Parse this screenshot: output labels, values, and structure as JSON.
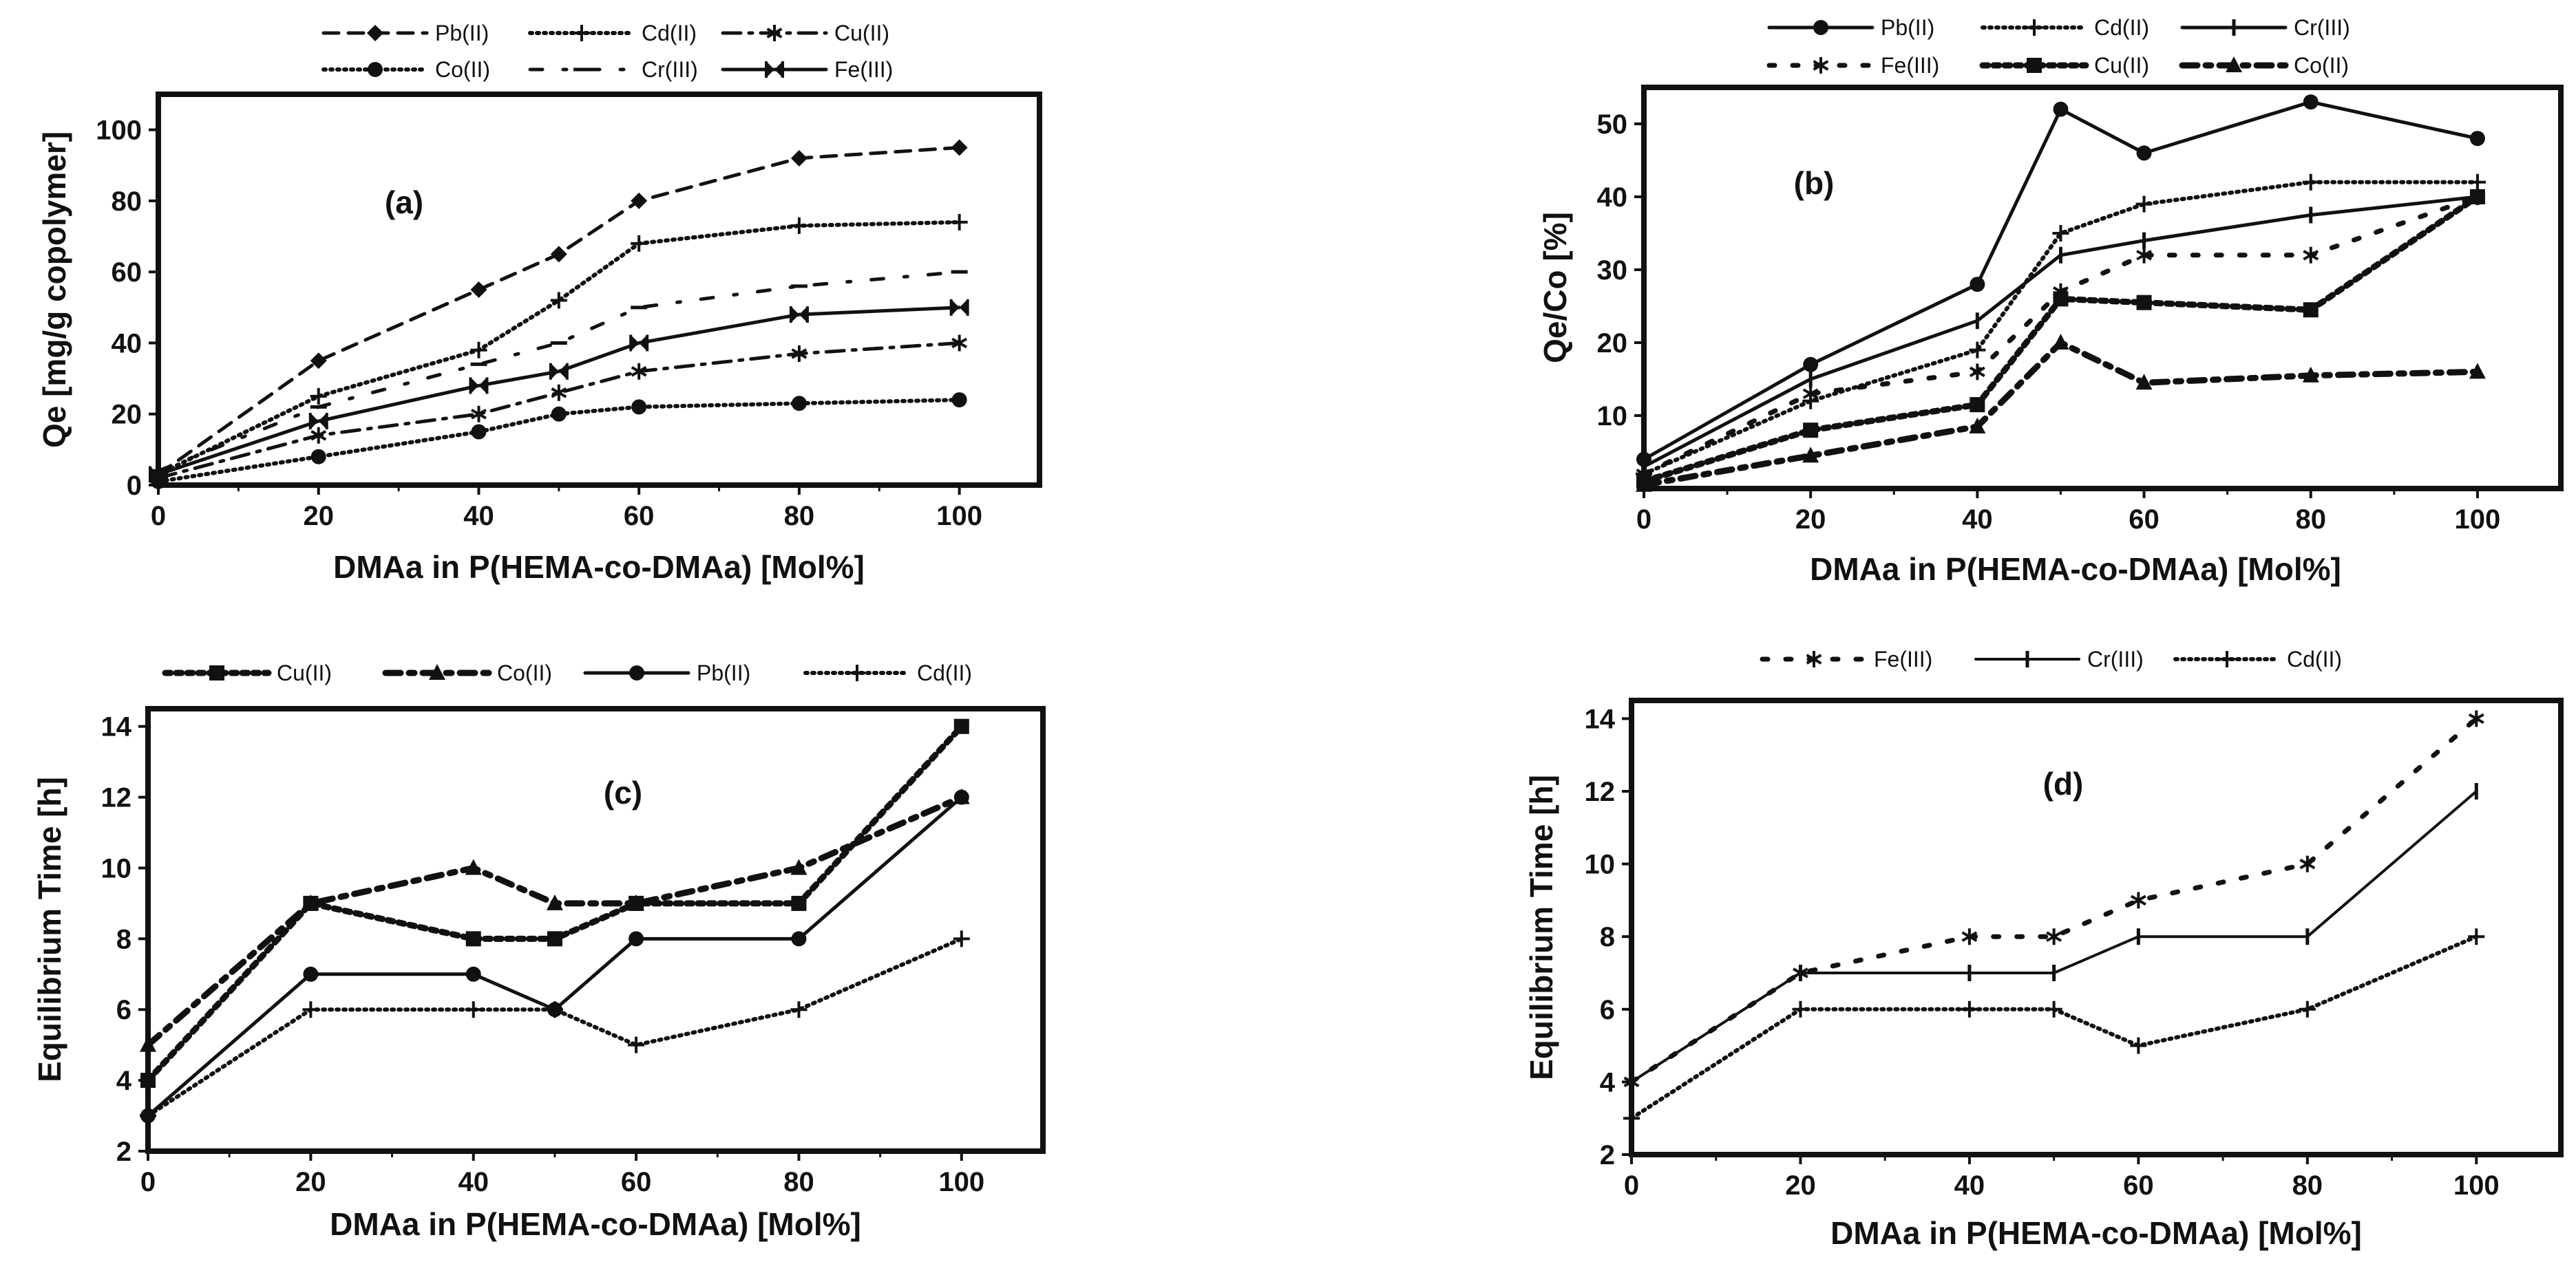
{
  "figure": {
    "background": "#ffffff",
    "ink": "#111111"
  },
  "chart_data": [
    {
      "panel_id": "a",
      "type": "line",
      "panel_label": "(a)",
      "xlabel": "DMAa in P(HEMA-co-DMAa) [Mol%]",
      "ylabel": "Qe [mg/g copolymer]",
      "xlim": [
        0,
        110
      ],
      "ylim": [
        0,
        110
      ],
      "xticks": [
        0,
        20,
        40,
        60,
        80,
        100
      ],
      "yticks": [
        0,
        20,
        40,
        60,
        80,
        100
      ],
      "legend_rows": [
        [
          0,
          1,
          2
        ],
        [
          3,
          4,
          5
        ]
      ],
      "series": [
        {
          "name": "Pb(II)",
          "dash": "dashed",
          "marker": "diamond",
          "x": [
            0,
            20,
            40,
            50,
            60,
            80,
            100
          ],
          "y": [
            3,
            35,
            55,
            65,
            80,
            92,
            95
          ]
        },
        {
          "name": "Cd(II)",
          "dash": "dotted",
          "marker": "plus",
          "x": [
            0,
            20,
            40,
            50,
            60,
            80,
            100
          ],
          "y": [
            3,
            25,
            38,
            52,
            68,
            73,
            74
          ]
        },
        {
          "name": "Cu(II)",
          "dash": "dashdot",
          "marker": "asterisk",
          "x": [
            0,
            20,
            40,
            50,
            60,
            80,
            100
          ],
          "y": [
            2,
            14,
            20,
            26,
            32,
            37,
            40
          ]
        },
        {
          "name": "Co(II)",
          "dash": "dotted",
          "marker": "circle",
          "x": [
            0,
            20,
            40,
            50,
            60,
            80,
            100
          ],
          "y": [
            1,
            8,
            15,
            20,
            22,
            23,
            24
          ]
        },
        {
          "name": "Cr(III)",
          "dash": "sparse-dashdot",
          "marker": "dash",
          "x": [
            0,
            20,
            40,
            50,
            60,
            80,
            100
          ],
          "y": [
            4,
            22,
            34,
            40,
            50,
            56,
            60
          ]
        },
        {
          "name": "Fe(III)",
          "dash": "solid",
          "marker": "bowtie",
          "x": [
            0,
            20,
            40,
            50,
            60,
            80,
            100
          ],
          "y": [
            3,
            18,
            28,
            32,
            40,
            48,
            50
          ]
        }
      ]
    },
    {
      "panel_id": "b",
      "type": "line",
      "panel_label": "(b)",
      "xlabel": "DMAa in P(HEMA-co-DMAa) [Mol%]",
      "ylabel": "Qe/Co [%]",
      "xlim": [
        0,
        110
      ],
      "ylim": [
        0,
        55
      ],
      "xticks": [
        0,
        20,
        40,
        60,
        80,
        100
      ],
      "yticks": [
        10,
        20,
        30,
        40,
        50
      ],
      "legend_rows": [
        [
          0,
          1,
          2
        ],
        [
          3,
          4,
          5
        ]
      ],
      "series": [
        {
          "name": "Pb(II)",
          "dash": "solid",
          "marker": "circle",
          "x": [
            0,
            20,
            40,
            50,
            60,
            80,
            100
          ],
          "y": [
            4,
            17,
            28,
            52,
            46,
            53,
            48
          ]
        },
        {
          "name": "Cd(II)",
          "dash": "dotted",
          "marker": "plus",
          "x": [
            0,
            20,
            40,
            50,
            60,
            80,
            100
          ],
          "y": [
            2,
            12,
            19,
            35,
            39,
            42,
            42
          ]
        },
        {
          "name": "Cr(III)",
          "dash": "solid",
          "marker": "vbar",
          "x": [
            0,
            20,
            40,
            50,
            60,
            80,
            100
          ],
          "y": [
            3,
            15,
            23,
            32,
            34,
            37.5,
            40
          ]
        },
        {
          "name": "Fe(III)",
          "dash": "sparse-dotted",
          "marker": "asterisk",
          "x": [
            0,
            20,
            40,
            50,
            60,
            80,
            100
          ],
          "y": [
            2,
            13,
            16,
            27,
            32,
            32,
            40
          ]
        },
        {
          "name": "Cu(II)",
          "dash": "heavy-dotted",
          "marker": "square",
          "x": [
            0,
            20,
            40,
            50,
            60,
            80,
            100
          ],
          "y": [
            1,
            8,
            11.5,
            26,
            25.5,
            24.5,
            40
          ]
        },
        {
          "name": "Co(II)",
          "dash": "heavy-dashdot",
          "marker": "triangle",
          "x": [
            0,
            20,
            40,
            50,
            60,
            80,
            100
          ],
          "y": [
            0.5,
            4.5,
            8.5,
            20,
            14.5,
            15.5,
            16
          ]
        }
      ]
    },
    {
      "panel_id": "c",
      "type": "line",
      "panel_label": "(c)",
      "xlabel": "DMAa in P(HEMA-co-DMAa) [Mol%]",
      "ylabel": "Equilibrium Time [h]",
      "xlim": [
        0,
        110
      ],
      "ylim": [
        2,
        14.5
      ],
      "xticks": [
        0,
        20,
        40,
        60,
        80,
        100
      ],
      "yticks": [
        2,
        4,
        6,
        8,
        10,
        12,
        14
      ],
      "legend_rows": [
        [
          0,
          1,
          2,
          3
        ]
      ],
      "series": [
        {
          "name": "Cu(II)",
          "dash": "heavy-dotted",
          "marker": "square",
          "x": [
            0,
            20,
            40,
            50,
            60,
            80,
            100
          ],
          "y": [
            4,
            9,
            8,
            8,
            9,
            9,
            14
          ]
        },
        {
          "name": "Co(II)",
          "dash": "heavy-dashdot",
          "marker": "triangle",
          "x": [
            0,
            20,
            40,
            50,
            60,
            80,
            100
          ],
          "y": [
            5,
            9,
            10,
            9,
            9,
            10,
            12
          ]
        },
        {
          "name": "Pb(II)",
          "dash": "solid",
          "marker": "circle",
          "x": [
            0,
            20,
            40,
            50,
            60,
            80,
            100
          ],
          "y": [
            3,
            7,
            7,
            6,
            8,
            8,
            12
          ]
        },
        {
          "name": "Cd(II)",
          "dash": "dotted",
          "marker": "plus",
          "x": [
            0,
            20,
            40,
            50,
            60,
            80,
            100
          ],
          "y": [
            3,
            6,
            6,
            6,
            5,
            6,
            8
          ]
        }
      ]
    },
    {
      "panel_id": "d",
      "type": "line",
      "panel_label": "(d)",
      "xlabel": "DMAa in P(HEMA-co-DMAa) [Mol%]",
      "ylabel": "Equilibrium Time [h]",
      "xlim": [
        0,
        110
      ],
      "ylim": [
        2,
        14.5
      ],
      "xticks": [
        0,
        20,
        40,
        60,
        80,
        100
      ],
      "yticks": [
        2,
        4,
        6,
        8,
        10,
        12,
        14
      ],
      "legend_rows": [
        [
          0,
          1,
          2
        ]
      ],
      "series": [
        {
          "name": "Fe(III)",
          "dash": "sparse-dotted",
          "marker": "asterisk",
          "x": [
            0,
            20,
            40,
            50,
            60,
            80,
            100
          ],
          "y": [
            4,
            7,
            8,
            8,
            9,
            10,
            14
          ]
        },
        {
          "name": "Cr(III)",
          "dash": "solid-thin",
          "marker": "vbar",
          "x": [
            0,
            20,
            40,
            50,
            60,
            80,
            100
          ],
          "y": [
            4,
            7,
            7,
            7,
            8,
            8,
            12
          ]
        },
        {
          "name": "Cd(II)",
          "dash": "dotted",
          "marker": "plus",
          "x": [
            0,
            20,
            40,
            50,
            60,
            80,
            100
          ],
          "y": [
            3,
            6,
            6,
            6,
            5,
            6,
            8
          ]
        }
      ]
    }
  ]
}
